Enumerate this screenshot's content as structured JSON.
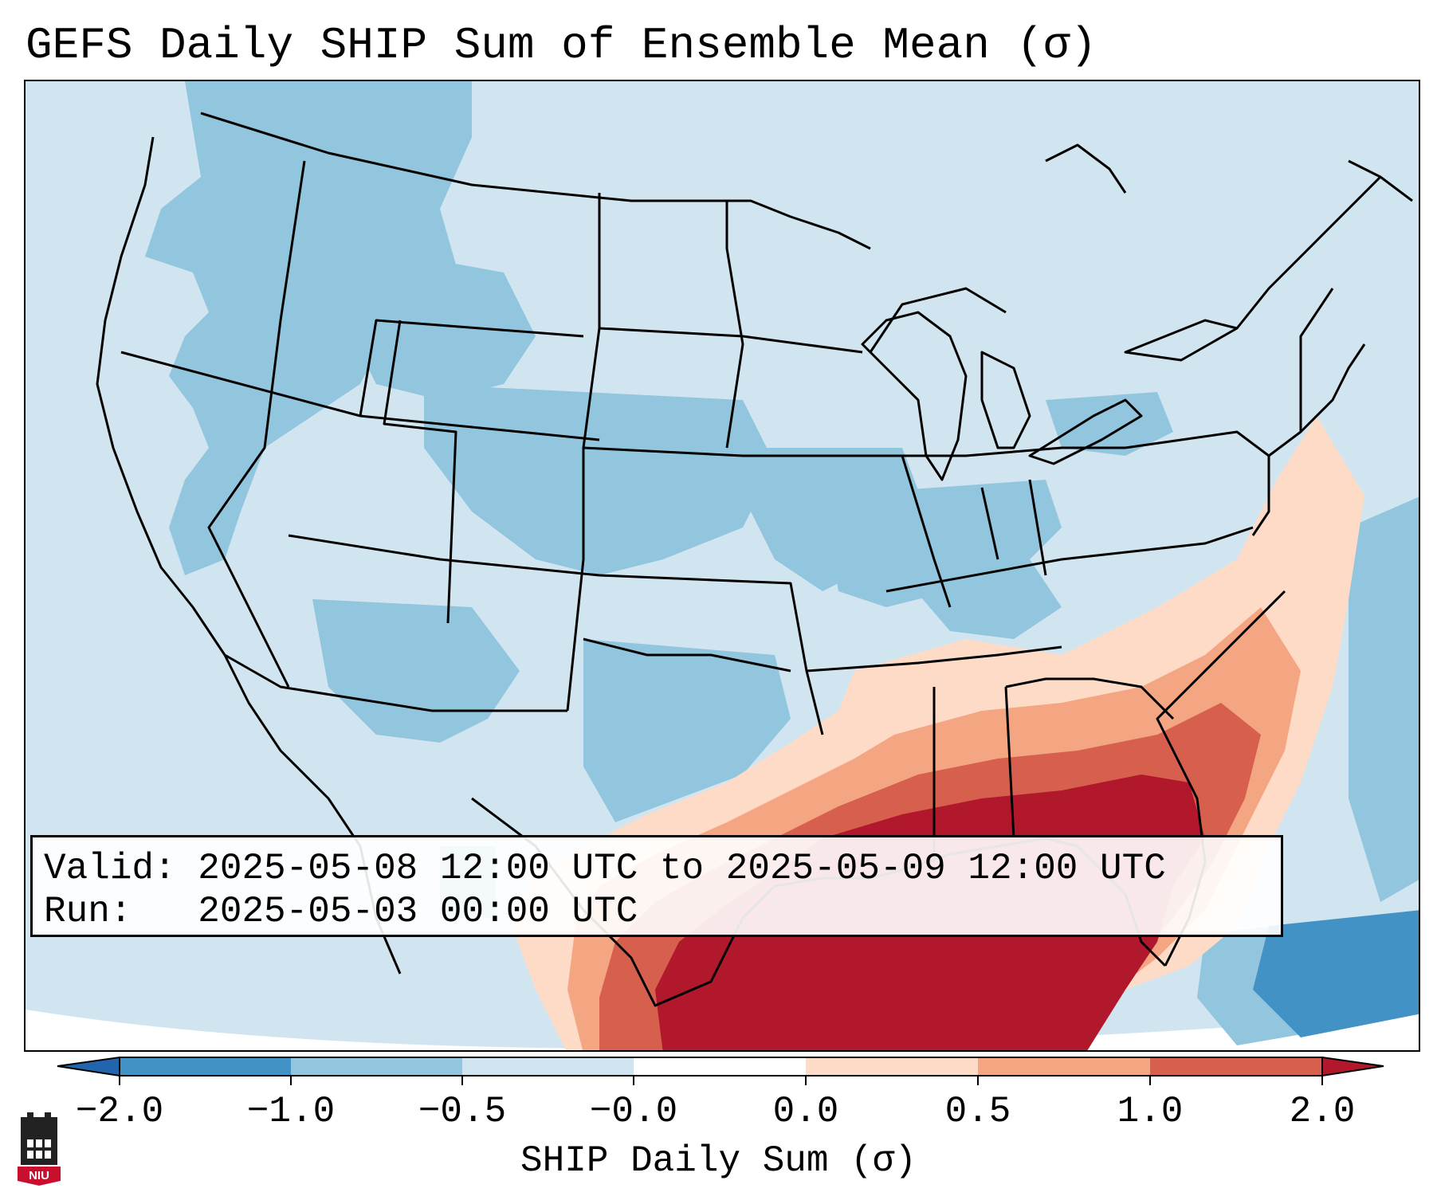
{
  "title": "GEFS Daily SHIP Sum of Ensemble Mean (σ)",
  "info": {
    "valid_line": "Valid: 2025-05-08 12:00 UTC to 2025-05-09 12:00 UTC",
    "run_line": "Run:   2025-05-03 00:00 UTC"
  },
  "colorbar": {
    "label": "SHIP Daily Sum (σ)",
    "ticks": [
      "−2.0",
      "−1.0",
      "−0.5",
      "−0.0",
      "0.0",
      "0.5",
      "1.0",
      "2.0"
    ],
    "segments": [
      {
        "range": "-2.0 to -1.0",
        "color": "#4292c6"
      },
      {
        "range": "-1.0 to -0.5",
        "color": "#92c5de"
      },
      {
        "range": "-0.5 to -0.0",
        "color": "#d1e5f0"
      },
      {
        "range": "-0.0 to 0.0",
        "color": "#ffffff"
      },
      {
        "range": "0.0 to 0.5",
        "color": "#fddbc7"
      },
      {
        "range": "0.5 to 1.0",
        "color": "#f4a582"
      },
      {
        "range": "1.0 to 2.0",
        "color": "#d6604d"
      }
    ],
    "under_color": "#2166ac",
    "over_color": "#b2182b"
  },
  "map": {
    "region": "Continental United States",
    "field_description": "Strongly positive SHIP (>2) over the Gulf of Mexico, Louisiana, Mississippi, Alabama, Georgia and Florida; positive values along the Southeast and Mid-Atlantic coast; slightly to moderately negative values across the West, Plains, Midwest and Northeast; strongly negative over the western Atlantic near the Bahamas.",
    "colors": {
      "ocean_light_blue": "#d1e5f0",
      "background_blue": "#d1e5f0",
      "strong_red": "#b2182b",
      "state_lines": "#000000"
    }
  },
  "logo": {
    "name": "NIU logo",
    "text": "NIU",
    "color": "#c8102e"
  }
}
